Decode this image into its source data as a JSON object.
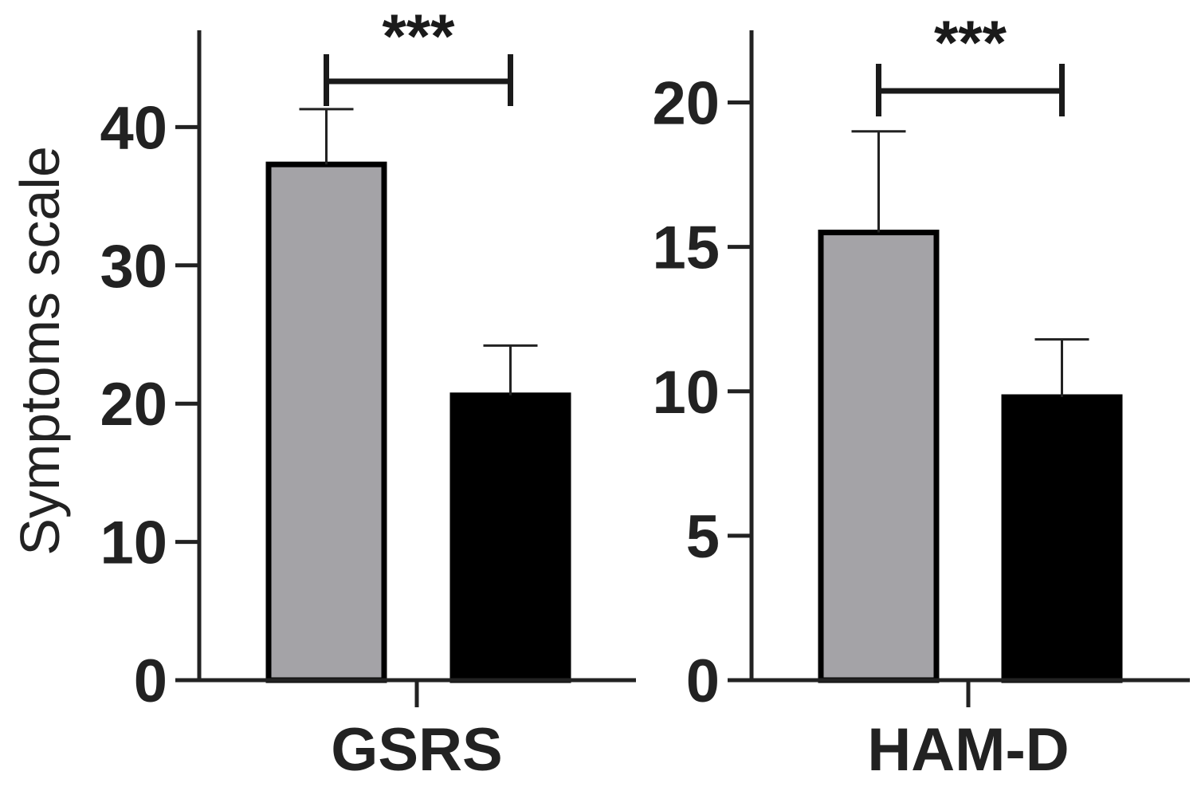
{
  "chart_data": [
    {
      "type": "bar",
      "title": "",
      "xlabel": "GSRS",
      "ylabel": "Symptoms scale",
      "ylim": [
        0,
        47
      ],
      "yticks": [
        0,
        10,
        20,
        30,
        40
      ],
      "grid": false,
      "categories": [
        "",
        ""
      ],
      "values": [
        37.3,
        20.6
      ],
      "errors": [
        4.0,
        3.6
      ],
      "colors": [
        "#a4a3a7",
        "#000000"
      ],
      "significance": {
        "from": 0,
        "to": 1,
        "label": "***"
      }
    },
    {
      "type": "bar",
      "title": "",
      "xlabel": "HAM-D",
      "ylabel": "",
      "ylim": [
        0,
        22.5
      ],
      "yticks": [
        0,
        5,
        10,
        15,
        20
      ],
      "grid": false,
      "categories": [
        "",
        ""
      ],
      "values": [
        15.5,
        9.8
      ],
      "errors": [
        3.5,
        2.0
      ],
      "colors": [
        "#a4a3a7",
        "#000000"
      ],
      "significance": {
        "from": 0,
        "to": 1,
        "label": "***"
      }
    }
  ]
}
